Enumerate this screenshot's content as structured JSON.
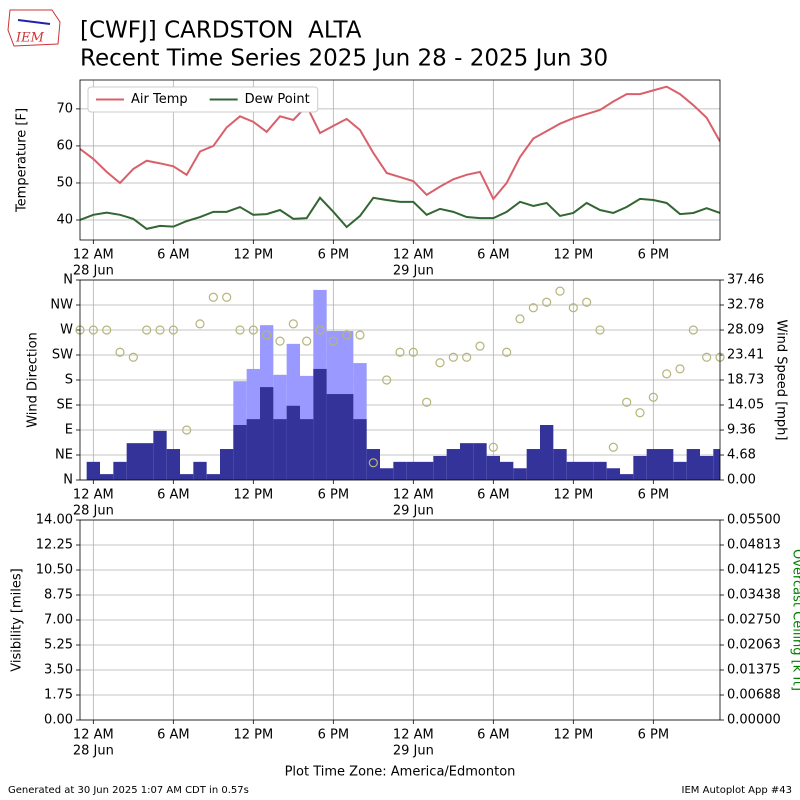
{
  "header": {
    "logo": "IEM",
    "title": "[CWFJ] CARDSTON  ALTA",
    "subtitle": "Recent Time Series 2025 Jun 28 - 2025 Jun 30"
  },
  "footer": {
    "xlabel": "Plot Time Zone: America/Edmonton",
    "left": "Generated at 30 Jun 2025 1:07 AM CDT in 0.57s",
    "right": "IEM Autoplot App #43"
  },
  "chart_data": [
    {
      "type": "line",
      "ylabel": "Temperature [F]",
      "grid": true,
      "legend": "upper left",
      "x": [
        -1,
        0,
        1,
        2,
        3,
        4,
        5,
        6,
        7,
        8,
        9,
        10,
        11,
        12,
        13,
        14,
        15,
        16,
        17,
        18,
        19,
        20,
        21,
        22,
        23,
        24,
        25,
        26,
        27,
        28,
        29,
        30,
        31,
        32,
        33,
        34,
        35,
        36,
        37,
        38,
        39,
        40,
        41,
        42,
        43,
        44,
        45,
        46,
        47
      ],
      "xlim": [
        -1,
        47
      ],
      "xticks": [
        {
          "value": 0,
          "label": "12 AM"
        },
        {
          "value": 6,
          "label": "6 AM"
        },
        {
          "value": 12,
          "label": "12 PM"
        },
        {
          "value": 18,
          "label": "6 PM"
        },
        {
          "value": 24,
          "label": "12 AM"
        },
        {
          "value": 30,
          "label": "6 AM"
        },
        {
          "value": 36,
          "label": "12 PM"
        },
        {
          "value": 42,
          "label": "6 PM"
        }
      ],
      "xdates": [
        {
          "value": 0,
          "label": "28 Jun"
        },
        {
          "value": 24,
          "label": "29 Jun"
        }
      ],
      "ylim": [
        34.6,
        77.8
      ],
      "yticks": [
        40,
        50,
        60,
        70
      ],
      "series": [
        {
          "name": "Air Temp",
          "color": "#d9606a",
          "values": [
            59.2,
            56.5,
            53,
            50,
            53.8,
            56,
            55.3,
            54.5,
            52.2,
            58.5,
            60,
            65,
            68,
            66.5,
            63.8,
            68,
            67,
            70.8,
            63.5,
            65.4,
            67.3,
            64.3,
            58.1,
            52.7,
            51.6,
            50.5,
            46.8,
            49,
            51,
            52.2,
            53,
            45.7,
            50,
            57,
            62,
            64,
            66,
            67.5,
            68.6,
            69.7,
            72,
            74,
            74,
            75,
            76,
            74,
            71,
            67.6,
            61.2
          ]
        },
        {
          "name": "Dew Point",
          "color": "#336633",
          "values": [
            40,
            41.4,
            42,
            41.4,
            40.3,
            37.6,
            38.4,
            38.2,
            39.7,
            40.8,
            42.2,
            42.2,
            43.5,
            41.4,
            41.6,
            42.7,
            40.3,
            40.5,
            46,
            42.2,
            38.1,
            41.1,
            46,
            45.4,
            44.9,
            44.9,
            41.4,
            43,
            42.2,
            40.8,
            40.5,
            40.5,
            42.2,
            44.9,
            43.8,
            44.6,
            41.1,
            41.9,
            44.6,
            42.7,
            41.9,
            43.5,
            45.7,
            45.4,
            44.6,
            41.6,
            41.9,
            43.2,
            41.9
          ]
        }
      ]
    },
    {
      "type": "bar",
      "ylabel": "Wind Direction",
      "y2label": "Wind Speed [mph]",
      "grid": true,
      "x": [
        -1,
        0,
        1,
        2,
        3,
        4,
        5,
        6,
        7,
        8,
        9,
        10,
        11,
        12,
        13,
        14,
        15,
        16,
        17,
        18,
        19,
        20,
        21,
        22,
        23,
        24,
        25,
        26,
        27,
        28,
        29,
        30,
        31,
        32,
        33,
        34,
        35,
        36,
        37,
        38,
        39,
        40,
        41,
        42,
        43,
        44,
        45,
        46,
        47
      ],
      "xlim": [
        -1,
        47
      ],
      "xticks": [
        {
          "value": 0,
          "label": "12 AM"
        },
        {
          "value": 6,
          "label": "6 AM"
        },
        {
          "value": 12,
          "label": "12 PM"
        },
        {
          "value": 18,
          "label": "6 PM"
        },
        {
          "value": 24,
          "label": "12 AM"
        },
        {
          "value": 30,
          "label": "6 AM"
        },
        {
          "value": 36,
          "label": "12 PM"
        },
        {
          "value": 42,
          "label": "6 PM"
        }
      ],
      "xdates": [
        {
          "value": 0,
          "label": "28 Jun"
        },
        {
          "value": 24,
          "label": "29 Jun"
        }
      ],
      "ylim": [
        0,
        360
      ],
      "yticks": [
        {
          "value": 0,
          "label": "N"
        },
        {
          "value": 45,
          "label": "NE"
        },
        {
          "value": 90,
          "label": "E"
        },
        {
          "value": 135,
          "label": "SE"
        },
        {
          "value": 180,
          "label": "S"
        },
        {
          "value": 225,
          "label": "SW"
        },
        {
          "value": 270,
          "label": "W"
        },
        {
          "value": 315,
          "label": "NW"
        },
        {
          "value": 360,
          "label": "N"
        }
      ],
      "y2lim": [
        0,
        37.46
      ],
      "y2ticks": [
        {
          "value": 0,
          "label": "0.00"
        },
        4.68,
        9.36,
        14.05,
        18.73,
        23.41,
        28.09,
        32.78,
        37.46
      ],
      "series": [
        {
          "kind": "bar",
          "axis": "y2",
          "color": "#9999ff",
          "values": [
            null,
            null,
            null,
            null,
            null,
            null,
            null,
            null,
            null,
            null,
            null,
            null,
            18.5,
            20.8,
            29.0,
            19.7,
            25.5,
            19.5,
            35.6,
            27.9,
            27.9,
            21.9,
            null,
            null,
            null,
            null,
            null,
            null,
            null,
            null,
            null,
            null,
            null,
            null,
            null,
            null,
            null,
            null,
            null,
            null,
            null,
            null,
            null,
            null,
            null,
            null,
            null,
            null,
            null
          ]
        },
        {
          "kind": "bar",
          "axis": "y2",
          "color": "#333399",
          "values": [
            null,
            3.4,
            1.1,
            3.4,
            6.9,
            6.9,
            9.2,
            5.8,
            1.1,
            3.4,
            1.1,
            5.8,
            10.3,
            11.4,
            17.4,
            11.4,
            13.9,
            11.4,
            20.8,
            16.1,
            16.1,
            11.4,
            5.8,
            2.2,
            3.4,
            3.4,
            3.4,
            4.5,
            5.8,
            6.9,
            6.9,
            4.5,
            3.4,
            2.2,
            5.8,
            10.3,
            5.8,
            3.4,
            3.4,
            3.4,
            2.2,
            1.1,
            4.5,
            5.8,
            5.8,
            3.4,
            5.8,
            4.5,
            5.8
          ]
        },
        {
          "kind": "scatter",
          "axis": "y",
          "color": "#b5b57a",
          "values": [
            270,
            270,
            270,
            230,
            221,
            270,
            270,
            270,
            90,
            281,
            329,
            329,
            270,
            270,
            261,
            250,
            281,
            250,
            270,
            250,
            261,
            261,
            31,
            180,
            230,
            230,
            140,
            211,
            221,
            221,
            241,
            59,
            230,
            290,
            310,
            320,
            340,
            310,
            320,
            270,
            59,
            140,
            121,
            149,
            191,
            200,
            270,
            221,
            221
          ]
        }
      ]
    },
    {
      "type": "line",
      "ylabel": "Visibility [miles]",
      "y2label": "Overcast Ceiling [k ft]",
      "y2label_color": "green",
      "grid": true,
      "xlim": [
        -1,
        47
      ],
      "xticks": [
        {
          "value": 0,
          "label": "12 AM"
        },
        {
          "value": 6,
          "label": "6 AM"
        },
        {
          "value": 12,
          "label": "12 PM"
        },
        {
          "value": 18,
          "label": "6 PM"
        },
        {
          "value": 24,
          "label": "12 AM"
        },
        {
          "value": 30,
          "label": "6 AM"
        },
        {
          "value": 36,
          "label": "12 PM"
        },
        {
          "value": 42,
          "label": "6 PM"
        }
      ],
      "xdates": [
        {
          "value": 0,
          "label": "28 Jun"
        },
        {
          "value": 24,
          "label": "29 Jun"
        }
      ],
      "ylim": [
        0,
        14
      ],
      "yticks": [
        {
          "value": 0,
          "label": "0.00"
        },
        1.75,
        {
          "value": 3.5,
          "label": "3.50"
        },
        5.25,
        {
          "value": 7,
          "label": "7.00"
        },
        8.75,
        {
          "value": 10.5,
          "label": "10.50"
        },
        12.25,
        {
          "value": 14,
          "label": "14.00"
        }
      ],
      "y2lim": [
        0,
        0.055
      ],
      "y2ticks": [
        {
          "value": 0,
          "label": "0.00000"
        },
        {
          "value": 0.006875,
          "label": "0.00688"
        },
        {
          "value": 0.01375,
          "label": "0.01375"
        },
        {
          "value": 0.020625,
          "label": "0.02063"
        },
        {
          "value": 0.0275,
          "label": "0.02750"
        },
        {
          "value": 0.034375,
          "label": "0.03438"
        },
        {
          "value": 0.04125,
          "label": "0.04125"
        },
        {
          "value": 0.048125,
          "label": "0.04813"
        },
        {
          "value": 0.055,
          "label": "0.05500"
        }
      ],
      "series": []
    }
  ]
}
